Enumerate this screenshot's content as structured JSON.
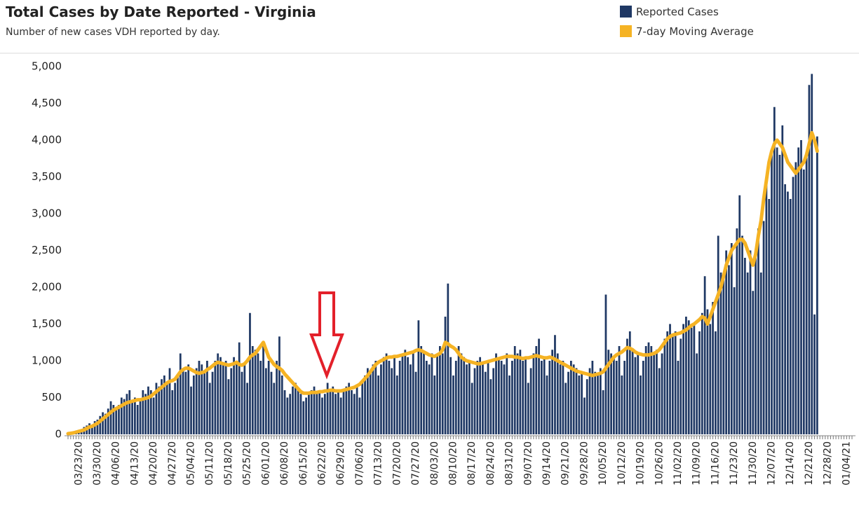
{
  "chart_data": {
    "type": "bar",
    "title": "Total Cases by Date Reported - Virginia",
    "subtitle": "Number of new cases VDH reported by day.",
    "categories": [
      null,
      null,
      null,
      null,
      "03/23/20",
      null,
      null,
      null,
      null,
      null,
      null,
      "03/30/20",
      null,
      null,
      null,
      null,
      null,
      null,
      "04/06/20",
      null,
      null,
      null,
      null,
      null,
      null,
      "04/13/20",
      null,
      null,
      null,
      null,
      null,
      null,
      "04/20/20",
      null,
      null,
      null,
      null,
      null,
      null,
      "04/27/20",
      null,
      null,
      null,
      null,
      null,
      null,
      "05/04/20",
      null,
      null,
      null,
      null,
      null,
      null,
      "05/11/20",
      null,
      null,
      null,
      null,
      null,
      null,
      "05/18/20",
      null,
      null,
      null,
      null,
      null,
      null,
      "05/25/20",
      null,
      null,
      null,
      null,
      null,
      null,
      "06/01/20",
      null,
      null,
      null,
      null,
      null,
      null,
      "06/08/20",
      null,
      null,
      null,
      null,
      null,
      null,
      "06/15/20",
      null,
      null,
      null,
      null,
      null,
      null,
      "06/22/20",
      null,
      null,
      null,
      null,
      null,
      null,
      "06/29/20",
      null,
      null,
      null,
      null,
      null,
      null,
      "07/06/20",
      null,
      null,
      null,
      null,
      null,
      null,
      "07/13/20",
      null,
      null,
      null,
      null,
      null,
      null,
      "07/20/20",
      null,
      null,
      null,
      null,
      null,
      null,
      "07/27/20",
      null,
      null,
      null,
      null,
      null,
      null,
      "08/03/20",
      null,
      null,
      null,
      null,
      null,
      null,
      "08/10/20",
      null,
      null,
      null,
      null,
      null,
      null,
      "08/17/20",
      null,
      null,
      null,
      null,
      null,
      null,
      "08/24/20",
      null,
      null,
      null,
      null,
      null,
      null,
      "08/31/20",
      null,
      null,
      null,
      null,
      null,
      null,
      "09/07/20",
      null,
      null,
      null,
      null,
      null,
      null,
      "09/14/20",
      null,
      null,
      null,
      null,
      null,
      null,
      "09/21/20",
      null,
      null,
      null,
      null,
      null,
      null,
      "09/28/20",
      null,
      null,
      null,
      null,
      null,
      null,
      "10/05/20",
      null,
      null,
      null,
      null,
      null,
      null,
      "10/12/20",
      null,
      null,
      null,
      null,
      null,
      null,
      "10/19/20",
      null,
      null,
      null,
      null,
      null,
      null,
      "10/26/20",
      null,
      null,
      null,
      null,
      null,
      null,
      "11/02/20",
      null,
      null,
      null,
      null,
      null,
      null,
      "11/09/20",
      null,
      null,
      null,
      null,
      null,
      null,
      "11/16/20",
      null,
      null,
      null,
      null,
      null,
      null,
      "11/23/20",
      null,
      null,
      null,
      null,
      null,
      null,
      "11/30/20",
      null,
      null,
      null,
      null,
      null,
      null,
      "12/07/20",
      null,
      null,
      null,
      null,
      null,
      null,
      "12/14/20",
      null,
      null,
      null,
      null,
      null,
      null,
      "12/21/20",
      null,
      null,
      null,
      null,
      null,
      null,
      "12/28/20",
      null,
      null,
      null,
      null,
      null,
      null,
      "01/04/21",
      null,
      null
    ],
    "series": [
      {
        "name": "Reported Cases",
        "type": "bar",
        "color": "#1f3864",
        "values": [
          10,
          20,
          30,
          50,
          40,
          60,
          100,
          120,
          150,
          100,
          180,
          200,
          250,
          300,
          280,
          350,
          450,
          400,
          350,
          400,
          500,
          480,
          550,
          600,
          450,
          500,
          400,
          450,
          600,
          550,
          650,
          600,
          500,
          700,
          650,
          750,
          800,
          700,
          900,
          600,
          700,
          800,
          1100,
          900,
          850,
          950,
          650,
          800,
          900,
          1000,
          950,
          850,
          1000,
          700,
          850,
          1000,
          1100,
          1050,
          950,
          1000,
          750,
          900,
          1050,
          1000,
          1250,
          850,
          950,
          700,
          1650,
          1200,
          1150,
          1100,
          1000,
          1200,
          900,
          1000,
          850,
          700,
          1000,
          1330,
          800,
          600,
          500,
          550,
          650,
          700,
          600,
          550,
          450,
          500,
          550,
          600,
          650,
          550,
          600,
          500,
          550,
          700,
          600,
          650,
          550,
          600,
          500,
          600,
          650,
          700,
          600,
          550,
          650,
          500,
          700,
          800,
          900,
          850,
          950,
          1000,
          800,
          950,
          1050,
          1100,
          1000,
          900,
          1050,
          800,
          1000,
          1100,
          1150,
          1050,
          950,
          1100,
          850,
          1550,
          1200,
          1100,
          1000,
          950,
          1100,
          800,
          1100,
          1200,
          1100,
          1600,
          2050,
          1050,
          800,
          1000,
          1200,
          1100,
          1050,
          950,
          1000,
          700,
          900,
          1000,
          1050,
          950,
          850,
          1000,
          750,
          900,
          1100,
          1050,
          1000,
          950,
          1100,
          800,
          1000,
          1200,
          1100,
          1150,
          1000,
          1050,
          700,
          900,
          1100,
          1200,
          1300,
          1000,
          1050,
          800,
          1000,
          1150,
          1350,
          1100,
          950,
          1000,
          700,
          850,
          1000,
          950,
          900,
          800,
          850,
          500,
          750,
          900,
          1000,
          850,
          800,
          900,
          600,
          1900,
          1150,
          1100,
          1050,
          1000,
          1200,
          800,
          1000,
          1300,
          1400,
          1150,
          1050,
          1100,
          800,
          1000,
          1200,
          1250,
          1200,
          1100,
          1150,
          900,
          1100,
          1300,
          1400,
          1500,
          1350,
          1400,
          1000,
          1300,
          1500,
          1600,
          1550,
          1450,
          1500,
          1100,
          1400,
          1650,
          2150,
          1700,
          1500,
          1800,
          1400,
          2700,
          2200,
          2100,
          2500,
          2300,
          2600,
          2000,
          2800,
          3250,
          2700,
          2400,
          2200,
          2500,
          1950,
          2400,
          2800,
          2200,
          2900,
          3400,
          3200,
          3850,
          4450,
          3900,
          3800,
          4200,
          3400,
          3300,
          3200,
          3500,
          3700,
          3900,
          4000,
          3600,
          3800,
          4750,
          4900,
          1630,
          4050,
          null,
          null,
          null,
          null,
          null,
          null,
          null,
          null,
          null,
          null,
          null,
          null,
          null
        ]
      },
      {
        "name": "7-day Moving Average",
        "type": "line",
        "color": "#f5b324",
        "values": [
          10,
          15,
          20,
          30,
          40,
          50,
          60,
          80,
          100,
          110,
          130,
          150,
          180,
          210,
          240,
          270,
          300,
          330,
          350,
          370,
          390,
          410,
          430,
          440,
          450,
          460,
          470,
          470,
          480,
          490,
          500,
          520,
          550,
          580,
          610,
          640,
          670,
          700,
          720,
          730,
          750,
          800,
          850,
          880,
          900,
          900,
          880,
          860,
          840,
          830,
          840,
          850,
          880,
          900,
          930,
          960,
          980,
          970,
          960,
          950,
          940,
          950,
          960,
          980,
          950,
          940,
          960,
          1000,
          1050,
          1080,
          1100,
          1150,
          1200,
          1250,
          1150,
          1050,
          1000,
          950,
          920,
          900,
          870,
          820,
          780,
          740,
          700,
          660,
          620,
          580,
          560,
          560,
          560,
          570,
          570,
          570,
          580,
          580,
          590,
          590,
          600,
          600,
          590,
          590,
          590,
          600,
          610,
          620,
          630,
          640,
          660,
          680,
          720,
          760,
          800,
          850,
          900,
          950,
          980,
          1000,
          1020,
          1040,
          1050,
          1050,
          1060,
          1060,
          1070,
          1080,
          1090,
          1100,
          1110,
          1120,
          1140,
          1150,
          1140,
          1120,
          1100,
          1080,
          1070,
          1060,
          1080,
          1100,
          1150,
          1250,
          1230,
          1200,
          1180,
          1150,
          1100,
          1050,
          1020,
          1000,
          990,
          980,
          970,
          960,
          960,
          970,
          980,
          990,
          1000,
          1010,
          1020,
          1030,
          1040,
          1050,
          1060,
          1060,
          1060,
          1050,
          1050,
          1040,
          1030,
          1040,
          1040,
          1050,
          1060,
          1070,
          1060,
          1050,
          1040,
          1040,
          1050,
          1040,
          1020,
          1000,
          980,
          960,
          940,
          920,
          900,
          880,
          860,
          850,
          840,
          830,
          820,
          810,
          800,
          810,
          820,
          830,
          850,
          900,
          950,
          1000,
          1050,
          1080,
          1100,
          1120,
          1150,
          1180,
          1170,
          1150,
          1120,
          1100,
          1090,
          1080,
          1080,
          1080,
          1090,
          1100,
          1120,
          1150,
          1200,
          1250,
          1300,
          1330,
          1350,
          1360,
          1370,
          1380,
          1400,
          1420,
          1450,
          1480,
          1500,
          1530,
          1560,
          1600,
          1580,
          1500,
          1600,
          1700,
          1800,
          1900,
          2000,
          2150,
          2300,
          2400,
          2500,
          2550,
          2600,
          2650,
          2650,
          2600,
          2500,
          2400,
          2300,
          2450,
          2700,
          2900,
          3200,
          3450,
          3700,
          3850,
          3950,
          4000,
          3950,
          3900,
          3800,
          3700,
          3650,
          3600,
          3550,
          3600,
          3650,
          3700,
          3800,
          3950,
          4100,
          4000,
          3850,
          null,
          null,
          null,
          null,
          null,
          null,
          null,
          null,
          null,
          null,
          null,
          null,
          null
        ]
      }
    ],
    "ylim": [
      0,
      5000
    ],
    "yticks": [
      0,
      500,
      {
        "value": 1000,
        "label": "1,000"
      },
      {
        "value": 1500,
        "label": "1,500"
      },
      {
        "value": 2000,
        "label": "2,000"
      },
      {
        "value": 2500,
        "label": "2,500"
      },
      {
        "value": 3000,
        "label": "3,000"
      },
      {
        "value": 3500,
        "label": "3,500"
      },
      {
        "value": 4000,
        "label": "4,000"
      },
      {
        "value": 4500,
        "label": "4,500"
      },
      {
        "value": 5000,
        "label": "5,000"
      }
    ],
    "grid": false
  }
}
